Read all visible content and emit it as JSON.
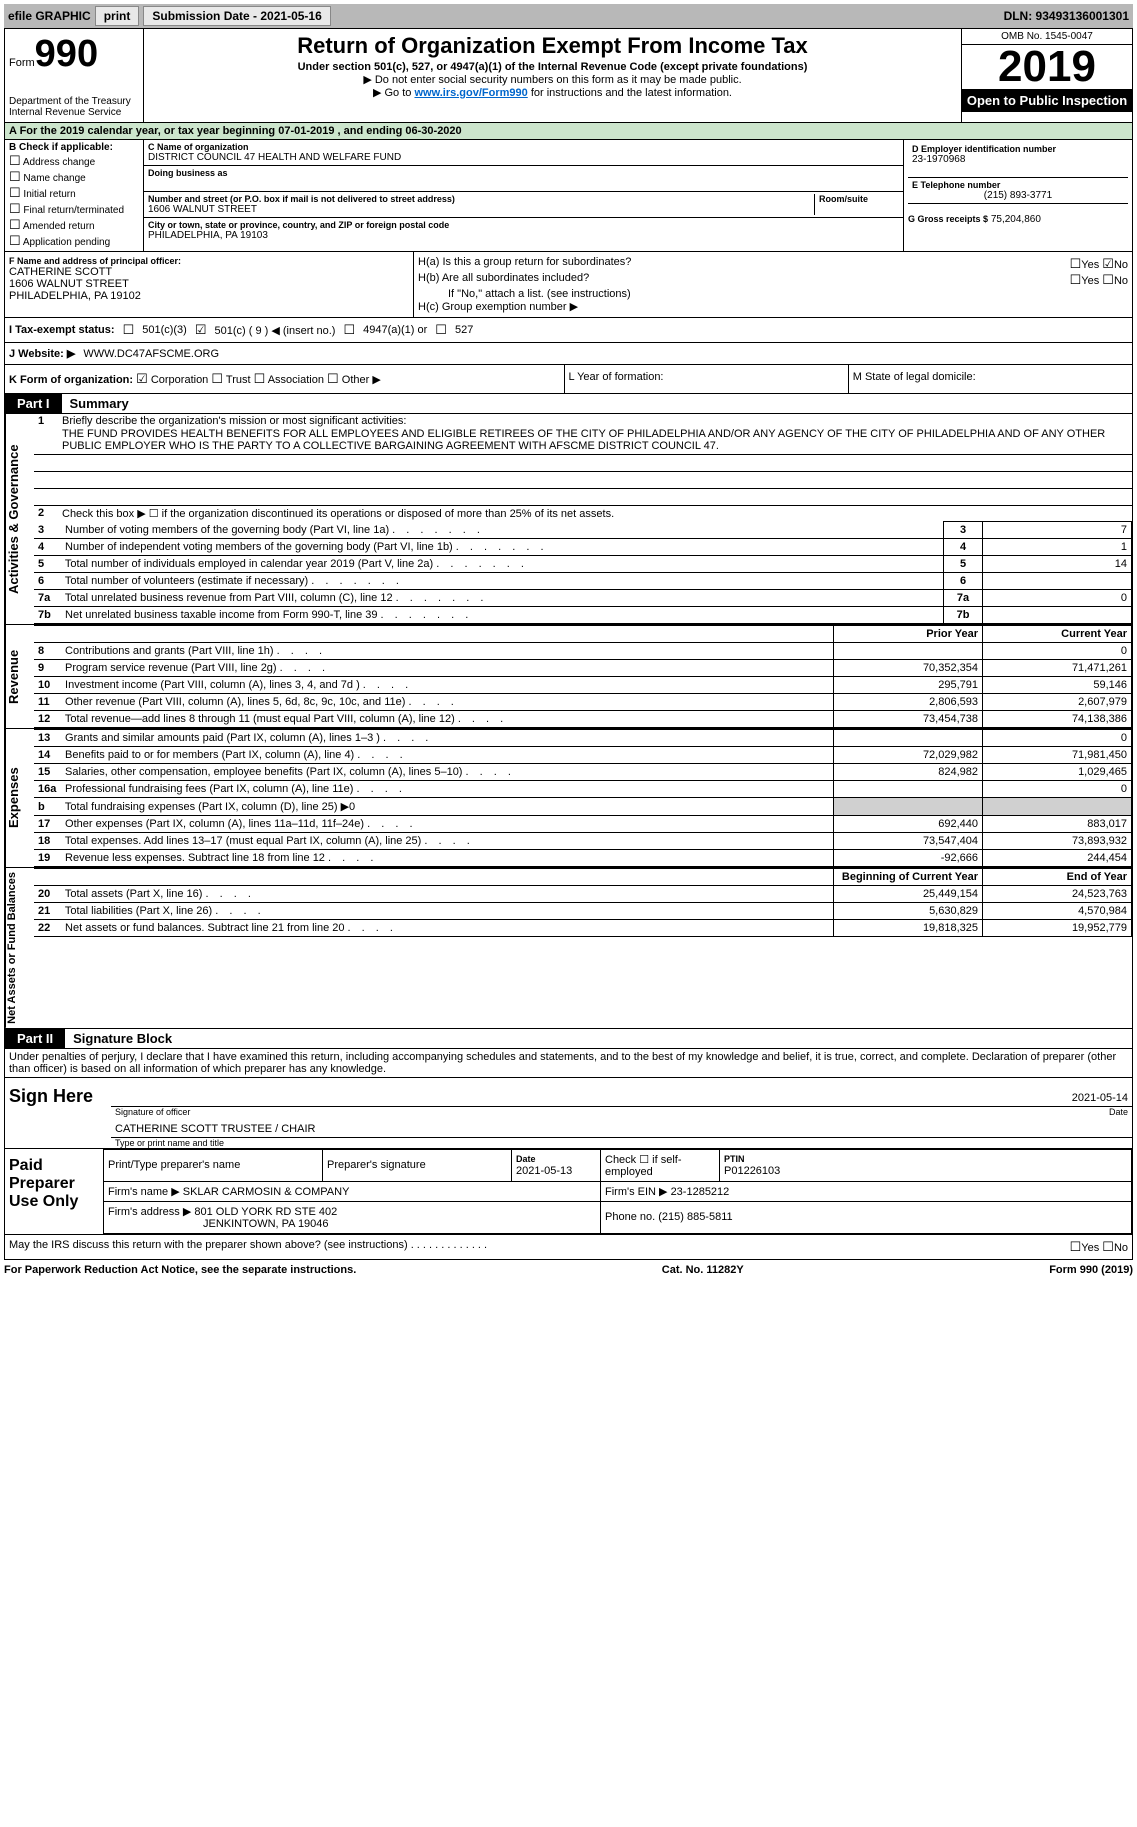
{
  "topbar": {
    "efile": "efile GRAPHIC",
    "print": "print",
    "sub_date_label": "Submission Date - 2021-05-16",
    "dln": "DLN: 93493136001301"
  },
  "header": {
    "form": "Form",
    "form_no": "990",
    "dept": "Department of the Treasury\nInternal Revenue Service",
    "title": "Return of Organization Exempt From Income Tax",
    "subtitle": "Under section 501(c), 527, or 4947(a)(1) of the Internal Revenue Code (except private foundations)",
    "bullet1": "▶ Do not enter social security numbers on this form as it may be made public.",
    "bullet2_pre": "▶ Go to ",
    "bullet2_link": "www.irs.gov/Form990",
    "bullet2_post": " for instructions and the latest information.",
    "omb": "OMB No. 1545-0047",
    "year": "2019",
    "open": "Open to Public Inspection"
  },
  "period": {
    "pre": "A For the 2019 calendar year, or tax year beginning ",
    "start": "07-01-2019",
    "mid": " , and ending ",
    "end": "06-30-2020"
  },
  "B": {
    "label": "B Check if applicable:",
    "items": [
      "Address change",
      "Name change",
      "Initial return",
      "Final return/terminated",
      "Amended return",
      "Application pending"
    ]
  },
  "C": {
    "name_label": "C Name of organization",
    "name": "DISTRICT COUNCIL 47 HEALTH AND WELFARE FUND",
    "dba_label": "Doing business as",
    "street_label": "Number and street (or P.O. box if mail is not delivered to street address)",
    "street": "1606 WALNUT STREET",
    "room_label": "Room/suite",
    "city_label": "City or town, state or province, country, and ZIP or foreign postal code",
    "city": "PHILADELPHIA, PA  19103"
  },
  "D": {
    "label": "D Employer identification number",
    "value": "23-1970968"
  },
  "E": {
    "label": "E Telephone number",
    "value": "(215) 893-3771"
  },
  "G": {
    "label": "G Gross receipts $",
    "value": "75,204,860"
  },
  "F": {
    "label": "F  Name and address of principal officer:",
    "name": "CATHERINE SCOTT",
    "addr1": "1606 WALNUT STREET",
    "addr2": "PHILADELPHIA, PA  19102"
  },
  "H": {
    "a_label": "H(a)  Is this a group return for subordinates?",
    "a_yes": "Yes",
    "a_no": "No",
    "b_label": "H(b)  Are all subordinates included?",
    "b_note": "If \"No,\" attach a list. (see instructions)",
    "c_label": "H(c)  Group exemption number ▶"
  },
  "I": {
    "label": "I  Tax-exempt status:",
    "o1": "501(c)(3)",
    "o2": "501(c) ( 9 ) ◀ (insert no.)",
    "o3": "4947(a)(1) or",
    "o4": "527"
  },
  "J": {
    "label": "J  Website: ▶",
    "value": "WWW.DC47AFSCME.ORG"
  },
  "K": {
    "label": "K Form of organization:",
    "corp": "Corporation",
    "trust": "Trust",
    "assoc": "Association",
    "other": "Other ▶"
  },
  "L": {
    "label": "L Year of formation:"
  },
  "M": {
    "label": "M State of legal domicile:"
  },
  "part1": {
    "tab": "Part I",
    "title": "Summary",
    "l1_label": "Briefly describe the organization's mission or most significant activities:",
    "mission": "THE FUND PROVIDES HEALTH BENEFITS FOR ALL EMPLOYEES AND ELIGIBLE RETIREES OF THE CITY OF PHILADELPHIA AND/OR ANY AGENCY OF THE CITY OF PHILADELPHIA AND OF ANY OTHER PUBLIC EMPLOYER WHO IS THE PARTY TO A COLLECTIVE BARGAINING AGREEMENT WITH AFSCME DISTRICT COUNCIL 47.",
    "l2": "Check this box ▶ ☐  if the organization discontinued its operations or disposed of more than 25% of its net assets.",
    "gov_rows": [
      {
        "n": "3",
        "d": "Number of voting members of the governing body (Part VI, line 1a)",
        "v": "7"
      },
      {
        "n": "4",
        "d": "Number of independent voting members of the governing body (Part VI, line 1b)",
        "v": "1"
      },
      {
        "n": "5",
        "d": "Total number of individuals employed in calendar year 2019 (Part V, line 2a)",
        "v": "14"
      },
      {
        "n": "6",
        "d": "Total number of volunteers (estimate if necessary)",
        "v": ""
      },
      {
        "n": "7a",
        "d": "Total unrelated business revenue from Part VIII, column (C), line 12",
        "v": "0"
      },
      {
        "n": "7b",
        "d": "Net unrelated business taxable income from Form 990-T, line 39",
        "v": "",
        "idx": "7b"
      }
    ],
    "side_gov": "Activities & Governance",
    "side_rev": "Revenue",
    "side_exp": "Expenses",
    "side_net": "Net Assets or Fund Balances",
    "col_prior": "Prior Year",
    "col_curr": "Current Year",
    "rev_rows": [
      {
        "n": "8",
        "d": "Contributions and grants (Part VIII, line 1h)",
        "p": "",
        "c": "0"
      },
      {
        "n": "9",
        "d": "Program service revenue (Part VIII, line 2g)",
        "p": "70,352,354",
        "c": "71,471,261"
      },
      {
        "n": "10",
        "d": "Investment income (Part VIII, column (A), lines 3, 4, and 7d )",
        "p": "295,791",
        "c": "59,146"
      },
      {
        "n": "11",
        "d": "Other revenue (Part VIII, column (A), lines 5, 6d, 8c, 9c, 10c, and 11e)",
        "p": "2,806,593",
        "c": "2,607,979"
      },
      {
        "n": "12",
        "d": "Total revenue—add lines 8 through 11 (must equal Part VIII, column (A), line 12)",
        "p": "73,454,738",
        "c": "74,138,386"
      }
    ],
    "exp_rows": [
      {
        "n": "13",
        "d": "Grants and similar amounts paid (Part IX, column (A), lines 1–3 )",
        "p": "",
        "c": "0"
      },
      {
        "n": "14",
        "d": "Benefits paid to or for members (Part IX, column (A), line 4)",
        "p": "72,029,982",
        "c": "71,981,450"
      },
      {
        "n": "15",
        "d": "Salaries, other compensation, employee benefits (Part IX, column (A), lines 5–10)",
        "p": "824,982",
        "c": "1,029,465"
      },
      {
        "n": "16a",
        "d": "Professional fundraising fees (Part IX, column (A), line 11e)",
        "p": "",
        "c": "0"
      },
      {
        "n": "b",
        "d": "Total fundraising expenses (Part IX, column (D), line 25) ▶0",
        "p": "shade",
        "c": "shade"
      },
      {
        "n": "17",
        "d": "Other expenses (Part IX, column (A), lines 11a–11d, 11f–24e)",
        "p": "692,440",
        "c": "883,017"
      },
      {
        "n": "18",
        "d": "Total expenses. Add lines 13–17 (must equal Part IX, column (A), line 25)",
        "p": "73,547,404",
        "c": "73,893,932"
      },
      {
        "n": "19",
        "d": "Revenue less expenses. Subtract line 18 from line 12",
        "p": "-92,666",
        "c": "244,454"
      }
    ],
    "col_beg": "Beginning of Current Year",
    "col_end": "End of Year",
    "net_rows": [
      {
        "n": "20",
        "d": "Total assets (Part X, line 16)",
        "p": "25,449,154",
        "c": "24,523,763"
      },
      {
        "n": "21",
        "d": "Total liabilities (Part X, line 26)",
        "p": "5,630,829",
        "c": "4,570,984"
      },
      {
        "n": "22",
        "d": "Net assets or fund balances. Subtract line 21 from line 20",
        "p": "19,818,325",
        "c": "19,952,779"
      }
    ]
  },
  "part2": {
    "tab": "Part II",
    "title": "Signature Block",
    "decl": "Under penalties of perjury, I declare that I have examined this return, including accompanying schedules and statements, and to the best of my knowledge and belief, it is true, correct, and complete. Declaration of preparer (other than officer) is based on all information of which preparer has any knowledge.",
    "sign_here": "Sign Here",
    "sig_officer": "Signature of officer",
    "sig_date": "2021-05-14",
    "sig_date_label": "Date",
    "officer_name": "CATHERINE SCOTT TRUSTEE / CHAIR",
    "officer_name_label": "Type or print name and title",
    "paid": "Paid Preparer Use Only",
    "prep_name_label": "Print/Type preparer's name",
    "prep_sig_label": "Preparer's signature",
    "prep_date_label": "Date",
    "prep_date": "2021-05-13",
    "prep_check": "Check ☐ if self-employed",
    "ptin_label": "PTIN",
    "ptin": "P01226103",
    "firm_name_label": "Firm's name     ▶",
    "firm_name": "SKLAR CARMOSIN & COMPANY",
    "firm_ein_label": "Firm's EIN ▶",
    "firm_ein": "23-1285212",
    "firm_addr_label": "Firm's address ▶",
    "firm_addr": "801 OLD YORK RD STE 402",
    "firm_city": "JENKINTOWN, PA  19046",
    "firm_phone_label": "Phone no.",
    "firm_phone": "(215) 885-5811",
    "discuss": "May the IRS discuss this return with the preparer shown above? (see instructions)",
    "yes": "Yes",
    "no": "No"
  },
  "footer": {
    "pra": "For Paperwork Reduction Act Notice, see the separate instructions.",
    "cat": "Cat. No. 11282Y",
    "form": "Form 990 (2019)"
  }
}
